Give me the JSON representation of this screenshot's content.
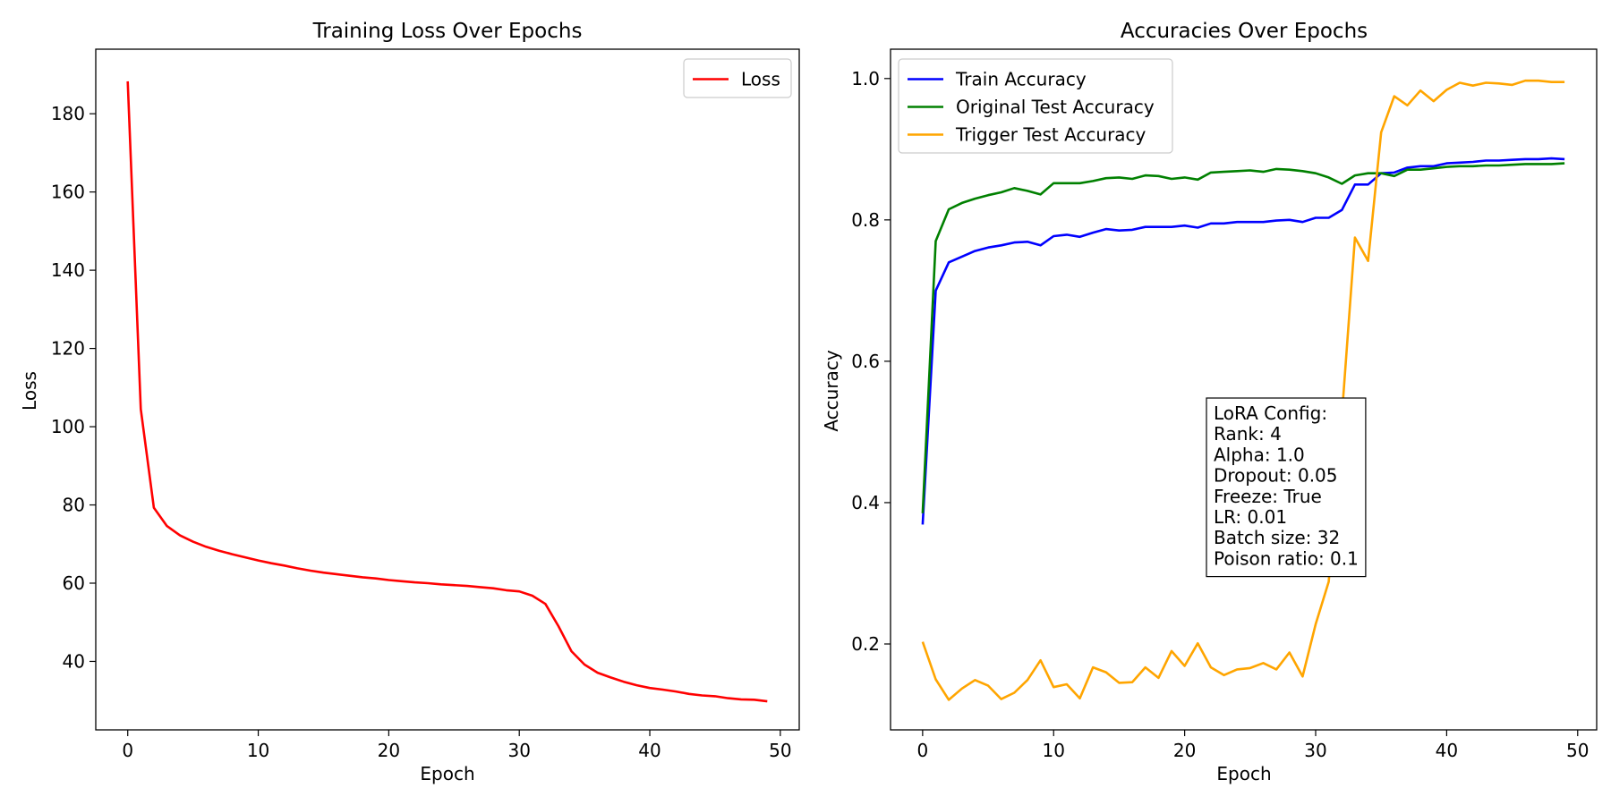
{
  "chart_data": [
    {
      "type": "line",
      "title": "Training Loss Over Epochs",
      "xlabel": "Epoch",
      "ylabel": "Loss",
      "xlim": [
        -2.45,
        51.45
      ],
      "ylim": [
        22.5,
        196.5
      ],
      "xticks": [
        0,
        10,
        20,
        30,
        40,
        50
      ],
      "yticks": [
        40,
        60,
        80,
        100,
        120,
        140,
        160,
        180
      ],
      "grid": false,
      "legend": "top-right",
      "x": [
        0,
        1,
        2,
        3,
        4,
        5,
        6,
        7,
        8,
        9,
        10,
        11,
        12,
        13,
        14,
        15,
        16,
        17,
        18,
        19,
        20,
        21,
        22,
        23,
        24,
        25,
        26,
        27,
        28,
        29,
        30,
        31,
        32,
        33,
        34,
        35,
        36,
        37,
        38,
        39,
        40,
        41,
        42,
        43,
        44,
        45,
        46,
        47,
        48,
        49
      ],
      "series": [
        {
          "name": "Loss",
          "color": "#ff0000",
          "values": [
            188.3,
            104.5,
            79.3,
            74.6,
            72.2,
            70.6,
            69.3,
            68.3,
            67.4,
            66.6,
            65.8,
            65.1,
            64.5,
            63.8,
            63.2,
            62.7,
            62.3,
            61.9,
            61.5,
            61.2,
            60.8,
            60.5,
            60.2,
            60.0,
            59.7,
            59.5,
            59.3,
            59.0,
            58.7,
            58.2,
            57.9,
            56.8,
            54.7,
            49.0,
            42.6,
            39.2,
            37.1,
            35.9,
            34.8,
            33.9,
            33.2,
            32.8,
            32.3,
            31.7,
            31.3,
            31.1,
            30.6,
            30.3,
            30.2,
            29.8
          ]
        }
      ]
    },
    {
      "type": "line",
      "title": "Accuracies Over Epochs",
      "xlabel": "Epoch",
      "ylabel": "Accuracy",
      "xlim": [
        -2.45,
        51.45
      ],
      "ylim": [
        0.0785,
        1.0415
      ],
      "xticks": [
        0,
        10,
        20,
        30,
        40,
        50
      ],
      "yticks": [
        0.2,
        0.4,
        0.6,
        0.8,
        1.0
      ],
      "ytick_labels": [
        "0.2",
        "0.4",
        "0.6",
        "0.8",
        "1.0"
      ],
      "grid": false,
      "legend": "top-left",
      "x": [
        0,
        1,
        2,
        3,
        4,
        5,
        6,
        7,
        8,
        9,
        10,
        11,
        12,
        13,
        14,
        15,
        16,
        17,
        18,
        19,
        20,
        21,
        22,
        23,
        24,
        25,
        26,
        27,
        28,
        29,
        30,
        31,
        32,
        33,
        34,
        35,
        36,
        37,
        38,
        39,
        40,
        41,
        42,
        43,
        44,
        45,
        46,
        47,
        48,
        49
      ],
      "series": [
        {
          "name": "Train Accuracy",
          "color": "#0000ff",
          "values": [
            0.369,
            0.7,
            0.74,
            0.748,
            0.756,
            0.761,
            0.764,
            0.768,
            0.769,
            0.764,
            0.777,
            0.779,
            0.776,
            0.782,
            0.787,
            0.785,
            0.786,
            0.79,
            0.79,
            0.79,
            0.792,
            0.789,
            0.795,
            0.795,
            0.797,
            0.797,
            0.797,
            0.799,
            0.8,
            0.797,
            0.803,
            0.803,
            0.814,
            0.85,
            0.85,
            0.866,
            0.867,
            0.874,
            0.876,
            0.876,
            0.88,
            0.881,
            0.882,
            0.884,
            0.884,
            0.885,
            0.886,
            0.886,
            0.887,
            0.886
          ]
        },
        {
          "name": "Original Test Accuracy",
          "color": "#008000",
          "values": [
            0.385,
            0.77,
            0.815,
            0.824,
            0.83,
            0.835,
            0.839,
            0.845,
            0.841,
            0.836,
            0.852,
            0.852,
            0.852,
            0.855,
            0.859,
            0.86,
            0.858,
            0.863,
            0.862,
            0.858,
            0.86,
            0.857,
            0.867,
            0.868,
            0.869,
            0.87,
            0.868,
            0.872,
            0.871,
            0.869,
            0.866,
            0.86,
            0.851,
            0.863,
            0.866,
            0.866,
            0.862,
            0.871,
            0.871,
            0.873,
            0.875,
            0.876,
            0.876,
            0.877,
            0.877,
            0.878,
            0.879,
            0.879,
            0.879,
            0.88
          ]
        },
        {
          "name": "Trigger Test Accuracy",
          "color": "#ffa500",
          "values": [
            0.203,
            0.15,
            0.121,
            0.137,
            0.149,
            0.141,
            0.122,
            0.131,
            0.149,
            0.177,
            0.139,
            0.143,
            0.123,
            0.167,
            0.16,
            0.145,
            0.146,
            0.167,
            0.152,
            0.19,
            0.169,
            0.201,
            0.167,
            0.156,
            0.164,
            0.166,
            0.173,
            0.164,
            0.188,
            0.154,
            0.228,
            0.288,
            0.523,
            0.775,
            0.742,
            0.924,
            0.975,
            0.962,
            0.983,
            0.968,
            0.984,
            0.994,
            0.99,
            0.994,
            0.993,
            0.991,
            0.997,
            0.997,
            0.995,
            0.995
          ]
        }
      ],
      "annotation": {
        "lines": [
          "LoRA Config:",
          "Rank: 4",
          "Alpha: 1.0",
          "Dropout: 0.05",
          "Freeze: True",
          "LR: 0.01",
          "Batch size: 32",
          "Poison ratio: 0.1"
        ]
      }
    }
  ]
}
